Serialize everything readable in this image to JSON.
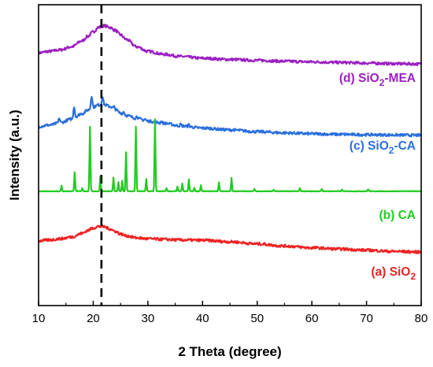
{
  "chart_data": {
    "type": "line",
    "title": "",
    "xlabel": "2 Theta (degree)",
    "ylabel": "Intensity (a.u.)",
    "xlim": [
      10,
      80
    ],
    "xticks": [
      10,
      20,
      30,
      40,
      50,
      60,
      70,
      80
    ],
    "x_tick_labels": [
      "10",
      "20",
      "30",
      "40",
      "50",
      "60",
      "70",
      "80"
    ],
    "y_ticks_shown": false,
    "reference_line": {
      "x": 21.5,
      "style": "dashed",
      "color": "#000000"
    },
    "series": [
      {
        "name": "(d) SiO2-MEA",
        "label_main": "(d) SiO",
        "label_sub": "2",
        "label_tail": "-MEA",
        "color": "#9b1fc1",
        "kind": "amorphous",
        "x": [
          10,
          12,
          14,
          16,
          18,
          19,
          20,
          21,
          22,
          23,
          24,
          25,
          26,
          28,
          30,
          33,
          36,
          40,
          45,
          50,
          55,
          60,
          65,
          70,
          75,
          80
        ],
        "y": [
          0.84,
          0.845,
          0.85,
          0.86,
          0.88,
          0.895,
          0.91,
          0.925,
          0.93,
          0.925,
          0.915,
          0.9,
          0.885,
          0.86,
          0.845,
          0.835,
          0.828,
          0.822,
          0.818,
          0.815,
          0.812,
          0.81,
          0.808,
          0.806,
          0.804,
          0.803
        ]
      },
      {
        "name": "(c) SiO2-CA",
        "label_main": "(c) SiO",
        "label_sub": "2",
        "label_tail": "-CA",
        "color": "#2a6fdc",
        "kind": "amorphous",
        "x": [
          10,
          12,
          14,
          16,
          18,
          19,
          20,
          21,
          22,
          23,
          24,
          25,
          26,
          28,
          30,
          33,
          36,
          40,
          45,
          50,
          55,
          60,
          65,
          70,
          75,
          80
        ],
        "y": [
          0.595,
          0.6,
          0.608,
          0.62,
          0.638,
          0.65,
          0.66,
          0.667,
          0.668,
          0.662,
          0.652,
          0.64,
          0.632,
          0.622,
          0.613,
          0.606,
          0.597,
          0.59,
          0.584,
          0.578,
          0.574,
          0.571,
          0.569,
          0.568,
          0.567,
          0.566
        ],
        "peaks": [
          {
            "x": 13.8,
            "h": 0.015
          },
          {
            "x": 16.5,
            "h": 0.04
          },
          {
            "x": 19.7,
            "h": 0.04
          },
          {
            "x": 21.7,
            "h": 0.028
          },
          {
            "x": 23.8,
            "h": 0.008
          },
          {
            "x": 25.6,
            "h": 0.01
          },
          {
            "x": 28.0,
            "h": 0.008
          },
          {
            "x": 29.5,
            "h": 0.006
          },
          {
            "x": 32.5,
            "h": 0.006
          },
          {
            "x": 36.0,
            "h": 0.006
          },
          {
            "x": 37.5,
            "h": 0.006
          }
        ]
      },
      {
        "name": "(b) CA",
        "label_main": "(b) CA",
        "label_sub": "",
        "label_tail": "",
        "color": "#22cc22",
        "kind": "crystalline",
        "baseline": 0.38,
        "peaks": [
          {
            "x": 14.2,
            "h": 0.018
          },
          {
            "x": 16.6,
            "h": 0.064
          },
          {
            "x": 18.0,
            "h": 0.01
          },
          {
            "x": 19.4,
            "h": 0.215
          },
          {
            "x": 21.3,
            "h": 0.05
          },
          {
            "x": 23.7,
            "h": 0.045
          },
          {
            "x": 24.6,
            "h": 0.03
          },
          {
            "x": 25.3,
            "h": 0.035
          },
          {
            "x": 26.0,
            "h": 0.13
          },
          {
            "x": 27.8,
            "h": 0.215
          },
          {
            "x": 29.7,
            "h": 0.04
          },
          {
            "x": 31.3,
            "h": 0.24
          },
          {
            "x": 33.4,
            "h": 0.01
          },
          {
            "x": 35.4,
            "h": 0.015
          },
          {
            "x": 36.3,
            "h": 0.025
          },
          {
            "x": 37.5,
            "h": 0.04
          },
          {
            "x": 38.5,
            "h": 0.012
          },
          {
            "x": 39.7,
            "h": 0.02
          },
          {
            "x": 43.0,
            "h": 0.03
          },
          {
            "x": 45.3,
            "h": 0.045
          },
          {
            "x": 49.5,
            "h": 0.008
          },
          {
            "x": 53.0,
            "h": 0.005
          },
          {
            "x": 57.8,
            "h": 0.01
          },
          {
            "x": 61.8,
            "h": 0.007
          },
          {
            "x": 65.5,
            "h": 0.006
          },
          {
            "x": 70.3,
            "h": 0.007
          }
        ]
      },
      {
        "name": "(a) SiO2",
        "label_main": "(a) SiO",
        "label_sub": "2",
        "label_tail": "",
        "color": "#ee2222",
        "kind": "amorphous",
        "x": [
          10,
          12,
          14,
          16,
          18,
          19,
          20,
          21,
          22,
          23,
          24,
          25,
          26,
          28,
          30,
          33,
          36,
          40,
          45,
          50,
          55,
          60,
          65,
          70,
          75,
          80
        ],
        "y": [
          0.215,
          0.218,
          0.222,
          0.228,
          0.24,
          0.25,
          0.258,
          0.263,
          0.262,
          0.255,
          0.247,
          0.238,
          0.232,
          0.225,
          0.222,
          0.22,
          0.218,
          0.217,
          0.212,
          0.205,
          0.198,
          0.192,
          0.188,
          0.184,
          0.18,
          0.178
        ]
      }
    ]
  }
}
